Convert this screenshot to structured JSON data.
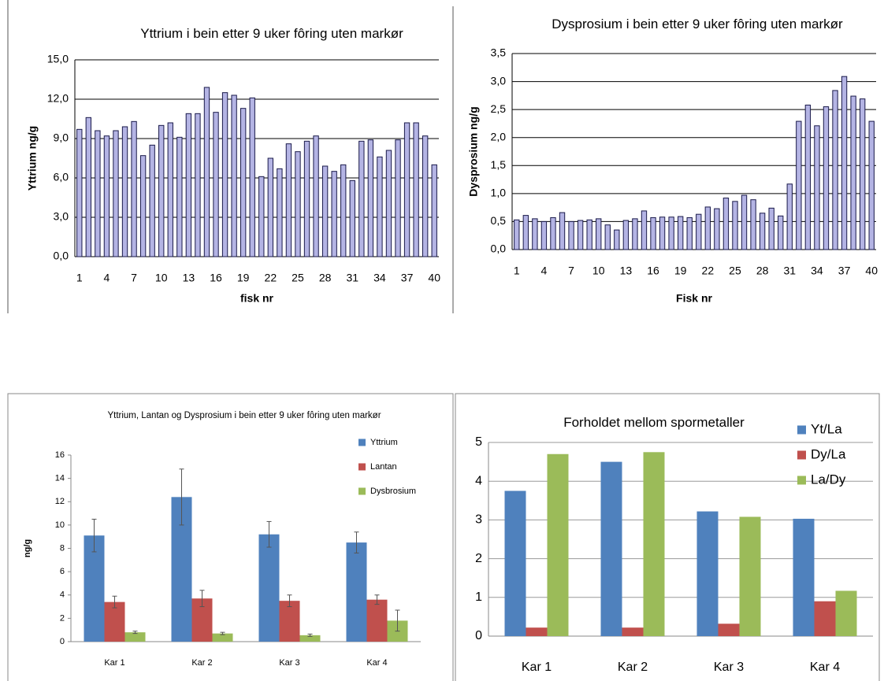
{
  "chart_data": [
    {
      "type": "bar",
      "title": "Yttrium i bein etter 9 uker fôring uten markør",
      "x_label": "fisk nr",
      "y_label": "Yttrium ng/g",
      "categories": [
        "1",
        null,
        null,
        "4",
        null,
        null,
        "7",
        null,
        null,
        "10",
        null,
        null,
        "13",
        null,
        null,
        "16",
        null,
        null,
        "19",
        null,
        null,
        "22",
        null,
        null,
        "25",
        null,
        null,
        "28",
        null,
        null,
        "31",
        null,
        null,
        "34",
        null,
        null,
        "37",
        null,
        null,
        "40"
      ],
      "values": [
        9.7,
        10.6,
        9.6,
        9.2,
        9.6,
        9.9,
        10.3,
        7.7,
        8.5,
        10.0,
        10.2,
        9.1,
        10.9,
        10.9,
        12.9,
        11.0,
        12.5,
        12.3,
        11.3,
        12.1,
        6.1,
        7.5,
        6.7,
        8.6,
        8.0,
        8.8,
        9.2,
        6.9,
        6.5,
        7.0,
        5.8,
        8.8,
        8.9,
        7.6,
        8.1,
        8.9,
        10.2,
        10.2,
        9.2,
        7.0
      ],
      "color": "#b4b4e4",
      "edge_color": "#1a1a4a",
      "ylim": [
        0,
        15
      ],
      "yticks": [
        {
          "value": 0,
          "label": "0,0"
        },
        {
          "value": 3,
          "label": "3,0"
        },
        {
          "value": 6,
          "label": "6,0"
        },
        {
          "value": 9,
          "label": "9,0"
        },
        {
          "value": 12,
          "label": "12,0"
        },
        {
          "value": 15,
          "label": "15,0"
        }
      ],
      "grid": true
    },
    {
      "type": "bar",
      "title": "Dysprosium i bein etter 9 uker fôring uten markør",
      "x_label": "Fisk nr",
      "y_label": "Dysprosium ng/g",
      "categories": [
        "1",
        null,
        null,
        "4",
        null,
        null,
        "7",
        null,
        null,
        "10",
        null,
        null,
        "13",
        null,
        null,
        "16",
        null,
        null,
        "19",
        null,
        null,
        "22",
        null,
        null,
        "25",
        null,
        null,
        "28",
        null,
        null,
        "31",
        null,
        null,
        "34",
        null,
        null,
        "37",
        null,
        null,
        "40"
      ],
      "values": [
        0.53,
        0.61,
        0.55,
        0.5,
        0.57,
        0.66,
        0.5,
        0.52,
        0.53,
        0.55,
        0.44,
        0.35,
        0.52,
        0.55,
        0.69,
        0.57,
        0.58,
        0.58,
        0.59,
        0.57,
        0.63,
        0.76,
        0.73,
        0.92,
        0.86,
        0.97,
        0.89,
        0.65,
        0.74,
        0.6,
        1.17,
        2.29,
        2.58,
        2.21,
        2.55,
        2.84,
        3.09,
        2.74,
        2.69,
        2.29
      ],
      "color": "#b4b4e4",
      "edge_color": "#1a1a4a",
      "ylim": [
        0,
        3.5
      ],
      "yticks": [
        {
          "value": 0,
          "label": "0,0"
        },
        {
          "value": 0.5,
          "label": "0,5"
        },
        {
          "value": 1,
          "label": "1,0"
        },
        {
          "value": 1.5,
          "label": "1,5"
        },
        {
          "value": 2,
          "label": "2,0"
        },
        {
          "value": 2.5,
          "label": "2,5"
        },
        {
          "value": 3,
          "label": "3,0"
        },
        {
          "value": 3.5,
          "label": "3,5"
        }
      ],
      "grid": true
    },
    {
      "type": "bar",
      "title": "Yttrium, Lantan og Dysprosium i bein etter 9 uker fôring uten markør",
      "y_label": "ng/g",
      "categories": [
        "Kar 1",
        "Kar 2",
        "Kar 3",
        "Kar 4"
      ],
      "series": [
        {
          "name": "Yttrium",
          "color": "#4f81bd",
          "values": [
            9.1,
            12.4,
            9.2,
            8.5
          ],
          "errors": [
            1.4,
            2.4,
            1.1,
            0.9
          ]
        },
        {
          "name": "Lantan",
          "color": "#c0504d",
          "values": [
            3.4,
            3.7,
            3.5,
            3.6
          ],
          "errors": [
            0.5,
            0.7,
            0.5,
            0.4
          ]
        },
        {
          "name": "Dysbrosium",
          "color": "#9bbb59",
          "values": [
            0.8,
            0.7,
            0.55,
            1.8
          ],
          "errors": [
            0.1,
            0.1,
            0.1,
            0.9
          ]
        }
      ],
      "ylim": [
        0,
        16
      ],
      "yticks": [
        0,
        2,
        4,
        6,
        8,
        10,
        12,
        14,
        16
      ],
      "grid": false,
      "legend": "upper right"
    },
    {
      "type": "bar",
      "title": "Forholdet mellom spormetaller",
      "categories": [
        "Kar 1",
        "Kar 2",
        "Kar 3",
        "Kar 4"
      ],
      "series": [
        {
          "name": "Yt/La",
          "color": "#4f81bd",
          "values": [
            3.75,
            4.5,
            3.22,
            3.03
          ]
        },
        {
          "name": "Dy/La",
          "color": "#c0504d",
          "values": [
            0.22,
            0.22,
            0.32,
            0.9
          ]
        },
        {
          "name": "La/Dy",
          "color": "#9bbb59",
          "values": [
            4.7,
            4.75,
            3.08,
            1.17
          ]
        }
      ],
      "ylim": [
        0,
        5
      ],
      "yticks": [
        0,
        1,
        2,
        3,
        4,
        5
      ],
      "grid": true,
      "legend": "upper right"
    }
  ]
}
